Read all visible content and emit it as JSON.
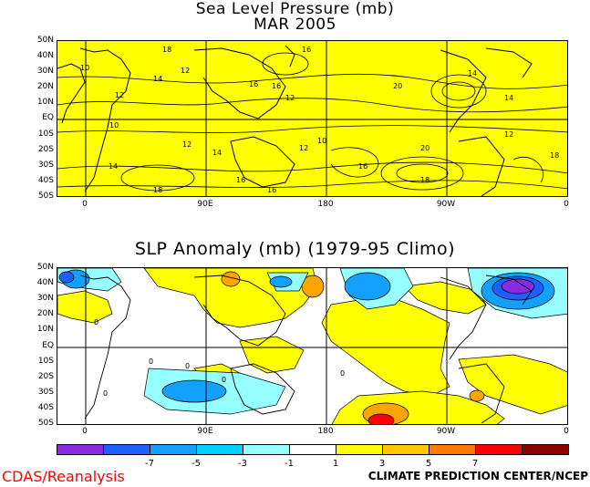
{
  "top_map": {
    "title_line1": "Sea Level Pressure (mb)",
    "title_line2": "MAR 2005",
    "lat_labels": [
      "50N",
      "40N",
      "30N",
      "20N",
      "10N",
      "EQ",
      "10S",
      "20S",
      "30S",
      "40S",
      "50S"
    ],
    "lon_labels": [
      "0",
      "90E",
      "180",
      "90W",
      "0"
    ],
    "contour_labels": [
      "18",
      "16",
      "12",
      "14",
      "16",
      "10",
      "12",
      "16",
      "20",
      "14",
      "12",
      "14",
      "10",
      "12",
      "14",
      "16",
      "18",
      "20",
      "16",
      "12",
      "14",
      "16",
      "18",
      "12",
      "18",
      "10"
    ],
    "fill_color": "#ffff00"
  },
  "bottom_map": {
    "title": "SLP Anomaly (mb) (1979-95 Climo)",
    "lat_labels": [
      "50N",
      "40N",
      "30N",
      "20N",
      "10N",
      "EQ",
      "10S",
      "20S",
      "30S",
      "40S",
      "50S"
    ],
    "lon_labels": [
      "0",
      "90E",
      "180",
      "90W",
      "0"
    ],
    "contour_labels": [
      "0",
      "0",
      "0",
      "0",
      "0",
      "0"
    ]
  },
  "colorbar": {
    "colors": [
      "#8a2be2",
      "#1e5fff",
      "#14a0ff",
      "#00d2ff",
      "#96ffff",
      "#ffffff",
      "#ffff00",
      "#ffc800",
      "#ff7800",
      "#ff0000",
      "#8b0000"
    ],
    "tick_labels": [
      "-7",
      "-5",
      "-3",
      "-1",
      "1",
      "3",
      "5",
      "7"
    ]
  },
  "footer": {
    "left": "CDAS/Reanalysis",
    "right": "CLIMATE PREDICTION CENTER/NCEP"
  }
}
